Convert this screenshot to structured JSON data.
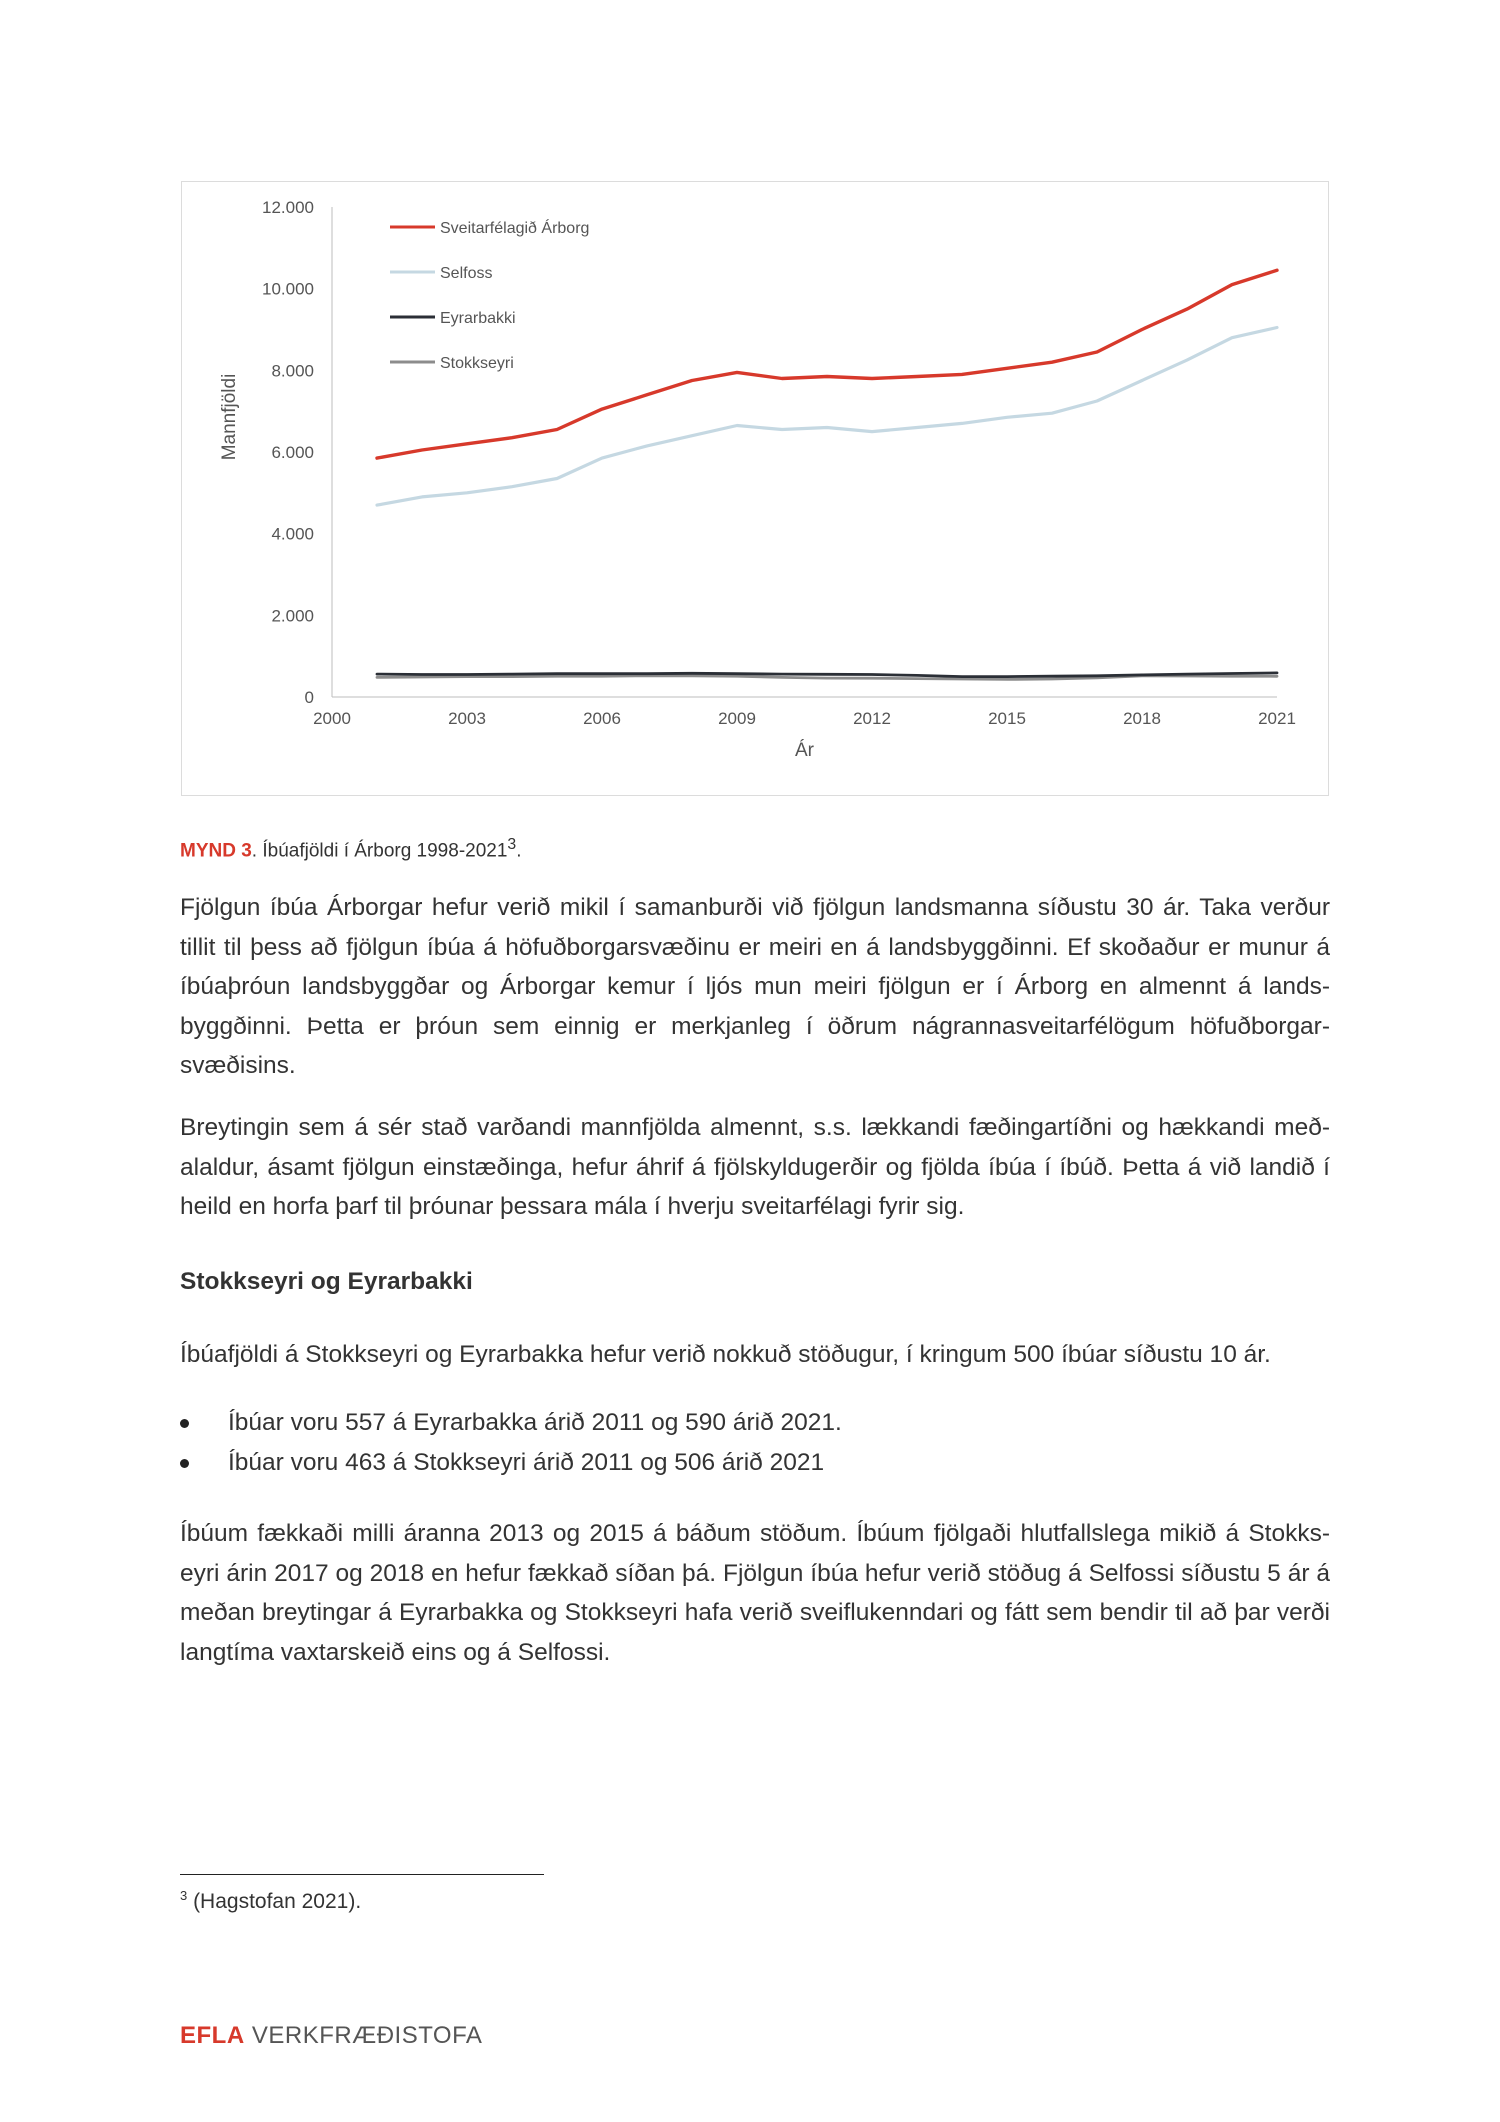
{
  "chart_data": {
    "type": "line",
    "xlabel": "Ár",
    "ylabel": "Mannfjöldi",
    "xlim": [
      2000,
      2021
    ],
    "ylim": [
      0,
      12000
    ],
    "x_ticks": [
      "2000",
      "2003",
      "2006",
      "2009",
      "2012",
      "2015",
      "2018",
      "2021"
    ],
    "y_ticks": [
      "0",
      "2.000",
      "4.000",
      "6.000",
      "8.000",
      "10.000",
      "12.000"
    ],
    "legend_position": "top-left",
    "x": [
      2001,
      2002,
      2003,
      2004,
      2005,
      2006,
      2007,
      2008,
      2009,
      2010,
      2011,
      2012,
      2013,
      2014,
      2015,
      2016,
      2017,
      2018,
      2019,
      2020,
      2021
    ],
    "series": [
      {
        "name": "Sveitarfélagið Árborg",
        "color": "#d7392b",
        "values": [
          5850,
          6050,
          6200,
          6350,
          6550,
          7050,
          7400,
          7750,
          7950,
          7800,
          7850,
          7800,
          7850,
          7900,
          8050,
          8200,
          8450,
          9000,
          9500,
          10100,
          10450
        ]
      },
      {
        "name": "Selfoss",
        "color": "#c5d8e2",
        "values": [
          4700,
          4900,
          5000,
          5150,
          5350,
          5850,
          6150,
          6400,
          6650,
          6550,
          6600,
          6500,
          6600,
          6700,
          6850,
          6950,
          7250,
          7750,
          8250,
          8800,
          9050
        ]
      },
      {
        "name": "Eyrarbakki",
        "color": "#2b2f36",
        "values": [
          560,
          550,
          550,
          560,
          570,
          570,
          570,
          580,
          570,
          560,
          557,
          550,
          530,
          500,
          500,
          510,
          520,
          540,
          560,
          575,
          590
        ]
      },
      {
        "name": "Stokkseyri",
        "color": "#8c8c8c",
        "values": [
          480,
          490,
          500,
          500,
          510,
          510,
          520,
          520,
          510,
          480,
          463,
          460,
          450,
          440,
          430,
          440,
          470,
          520,
          515,
          510,
          506
        ]
      }
    ]
  },
  "caption": {
    "lead": "MYND 3",
    "text": ". Íbúafjöldi í Árborg 1998-2021",
    "sup": "3",
    "end": "."
  },
  "paragraphs": [
    "Fjölgun íbúa Árborgar hefur verið mikil í samanburði við fjölgun landsmanna síðustu 30 ár. Taka verður tillit til þess að fjölgun íbúa á höfuðborgarsvæðinu er meiri en á landsbyggðinni. Ef skoðaður er munur á íbúaþróun landsbyggðar og Árborgar kemur í ljós mun meiri fjölgun er í Árborg en almennt á lands-byggðinni. Þetta er þróun sem einnig er merkjanleg í öðrum nágrannasveitarfélögum höfuðborgar-svæðisins.",
    "Breytingin sem á sér stað varðandi mannfjölda almennt, s.s. lækkandi fæðingartíðni og hækkandi með-alaldur, ásamt fjölgun einstæðinga, hefur áhrif á fjölskyldugerðir og fjölda íbúa í íbúð. Þetta á við landið í heild en horfa þarf til þróunar þessara mála í hverju sveitarfélagi fyrir sig."
  ],
  "section": {
    "heading": "Stokkseyri og Eyrarbakki",
    "intro": "Íbúafjöldi á Stokkseyri og Eyrarbakka hefur verið nokkuð stöðugur, í kringum 500 íbúar síðustu 10 ár.",
    "bullets": [
      "Íbúar voru 557 á Eyrarbakka árið 2011 og 590 árið 2021.",
      "Íbúar voru 463 á Stokkseyri árið 2011 og 506 árið 2021"
    ],
    "closing": "Íbúum fækkaði milli áranna 2013 og 2015 á báðum stöðum. Íbúum fjölgaði hlutfallslega mikið á Stokks-eyri árin 2017 og 2018 en hefur fækkað síðan þá. Fjölgun íbúa hefur verið stöðug á Selfossi síðustu 5 ár á meðan breytingar á Eyrarbakka og Stokkseyri hafa verið sveiflukenndari og fátt sem bendir til að þar verði langtíma vaxtarskeið eins og á Selfossi."
  },
  "footnote": {
    "mark": "3",
    "text": " (Hagstofan 2021)."
  },
  "footer": {
    "brand": "EFLA",
    "sub": " VERKFRÆÐISTOFA"
  }
}
